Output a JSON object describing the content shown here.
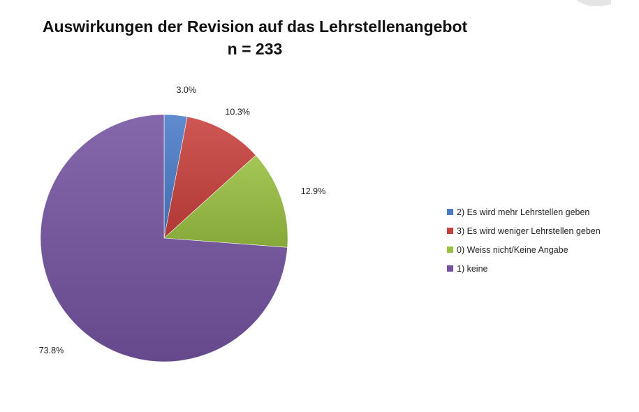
{
  "title": "Auswirkungen der Revision auf das Lehrstellenangebot",
  "subtitle": "n = 233",
  "chart_data": {
    "type": "pie",
    "title": "Auswirkungen der Revision auf das Lehrstellenangebot",
    "subtitle": "n = 233",
    "legend_position": "right",
    "start_angle_deg": 0,
    "direction": "clockwise",
    "slices": [
      {
        "name": "2) Es wird mehr Lehrstellen geben",
        "value": 3.0,
        "label": "3.0%",
        "color": "#4a7bc8"
      },
      {
        "name": "3) Es wird weniger Lehrstellen geben",
        "value": 10.3,
        "label": "10.3%",
        "color": "#c8403c"
      },
      {
        "name": "0) Weiss nicht/Keine Angabe",
        "value": 12.9,
        "label": "12.9%",
        "color": "#98bf40"
      },
      {
        "name": "1) keine",
        "value": 73.8,
        "label": "73.8%",
        "color": "#7452a0"
      }
    ]
  }
}
